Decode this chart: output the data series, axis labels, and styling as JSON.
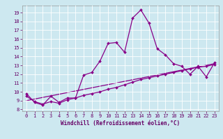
{
  "xlabel": "Windchill (Refroidissement éolien,°C)",
  "bg_color": "#cde8f0",
  "line_color": "#880088",
  "xlim": [
    -0.5,
    23.5
  ],
  "ylim": [
    7.8,
    19.8
  ],
  "yticks": [
    8,
    9,
    10,
    11,
    12,
    13,
    14,
    15,
    16,
    17,
    18,
    19
  ],
  "xticks": [
    0,
    1,
    2,
    3,
    4,
    5,
    6,
    7,
    8,
    9,
    10,
    11,
    12,
    13,
    14,
    15,
    16,
    17,
    18,
    19,
    20,
    21,
    22,
    23
  ],
  "series1_x": [
    0,
    1,
    2,
    3,
    4,
    5,
    6,
    7,
    8,
    9,
    10,
    11,
    12,
    13,
    14,
    15,
    16,
    17,
    18,
    19,
    20,
    21,
    22,
    23
  ],
  "series1_y": [
    9.8,
    8.8,
    8.5,
    9.5,
    8.8,
    9.3,
    9.3,
    11.9,
    12.2,
    13.5,
    15.5,
    15.6,
    14.5,
    18.4,
    19.3,
    17.8,
    14.9,
    14.2,
    13.2,
    12.9,
    12.0,
    12.9,
    11.7,
    13.3
  ],
  "series2_x": [
    0,
    1,
    2,
    3,
    4,
    5,
    6,
    7,
    8,
    9,
    10,
    11,
    12,
    13,
    14,
    15,
    16,
    17,
    18,
    19,
    20,
    21,
    22,
    23
  ],
  "series2_y": [
    9.5,
    8.9,
    8.6,
    8.9,
    8.7,
    9.1,
    9.3,
    9.6,
    9.8,
    10.0,
    10.3,
    10.5,
    10.8,
    11.1,
    11.4,
    11.6,
    11.8,
    12.0,
    12.2,
    12.4,
    12.6,
    12.8,
    12.9,
    13.1
  ],
  "series3_x": [
    0,
    23
  ],
  "series3_y": [
    9.0,
    13.2
  ],
  "tick_color": "#660066",
  "tick_fontsize": 5.0,
  "xlabel_fontsize": 5.5,
  "xlabel_color": "#660066",
  "marker_size": 2.0,
  "line_width": 0.9
}
